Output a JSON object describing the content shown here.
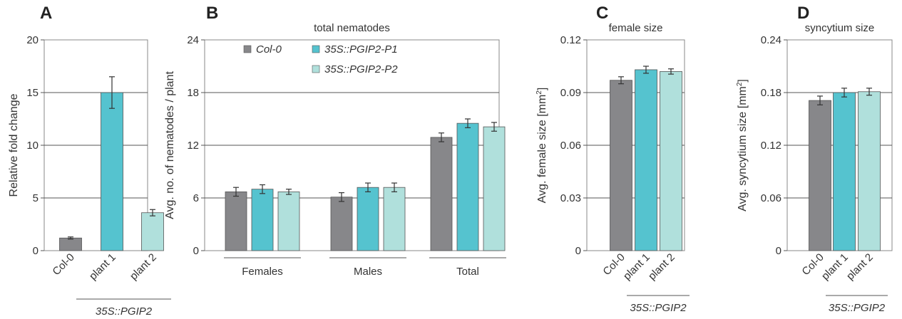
{
  "colors": {
    "col0": "#87878a",
    "p1": "#55c3cf",
    "p2": "#b0e0dc",
    "frame": "#888888",
    "grid": "#555555",
    "error": "#333333"
  },
  "chart_data": [
    {
      "panel": "A",
      "type": "bar",
      "title": "",
      "ylabel": "Relative fold change",
      "ylim": [
        0,
        20
      ],
      "yticks": [
        "0",
        "5",
        "10",
        "15",
        "20"
      ],
      "categories": [
        "Col-0",
        "plant 1",
        "plant 2"
      ],
      "values": [
        1.2,
        15.0,
        3.6
      ],
      "errors": [
        0.1,
        1.5,
        0.3
      ],
      "group_label": "35S::PGIP2"
    },
    {
      "panel": "B",
      "type": "bar",
      "title": "total nematodes",
      "ylabel": "Avg. no. of nematodes / plant",
      "ylim": [
        0,
        24
      ],
      "yticks": [
        "0",
        "6",
        "12",
        "18",
        "24"
      ],
      "categories": [
        "Females",
        "Males",
        "Total"
      ],
      "series": [
        {
          "name": "Col-0",
          "values": [
            6.7,
            6.1,
            12.9
          ],
          "errors": [
            0.5,
            0.5,
            0.5
          ]
        },
        {
          "name": "35S::PGIP2-P1",
          "values": [
            7.0,
            7.2,
            14.5
          ],
          "errors": [
            0.5,
            0.5,
            0.5
          ]
        },
        {
          "name": "35S::PGIP2-P2",
          "values": [
            6.7,
            7.2,
            14.1
          ],
          "errors": [
            0.3,
            0.5,
            0.5
          ]
        }
      ],
      "legend": "top-left"
    },
    {
      "panel": "C",
      "type": "bar",
      "title": "female size",
      "ylabel": "Avg. female size [mm",
      "ylabel_sup": "2",
      "ylabel_end": "]",
      "ylim": [
        0,
        0.12
      ],
      "yticks": [
        "0",
        "0.03",
        "0.06",
        "0.09",
        "0.12"
      ],
      "categories": [
        "Col-0",
        "plant 1",
        "plant 2"
      ],
      "values": [
        0.097,
        0.103,
        0.102
      ],
      "errors": [
        0.002,
        0.002,
        0.0015
      ],
      "group_label": "35S::PGIP2"
    },
    {
      "panel": "D",
      "type": "bar",
      "title": "syncytium size",
      "ylabel": "Avg. syncytium size [mm",
      "ylabel_sup": "2",
      "ylabel_end": "]",
      "ylim": [
        0,
        0.24
      ],
      "yticks": [
        "0",
        "0.06",
        "0.12",
        "0.18",
        "0.24"
      ],
      "categories": [
        "Col-0",
        "plant 1",
        "plant 2"
      ],
      "values": [
        0.171,
        0.18,
        0.181
      ],
      "errors": [
        0.005,
        0.005,
        0.004
      ],
      "group_label": "35S::PGIP2"
    }
  ]
}
